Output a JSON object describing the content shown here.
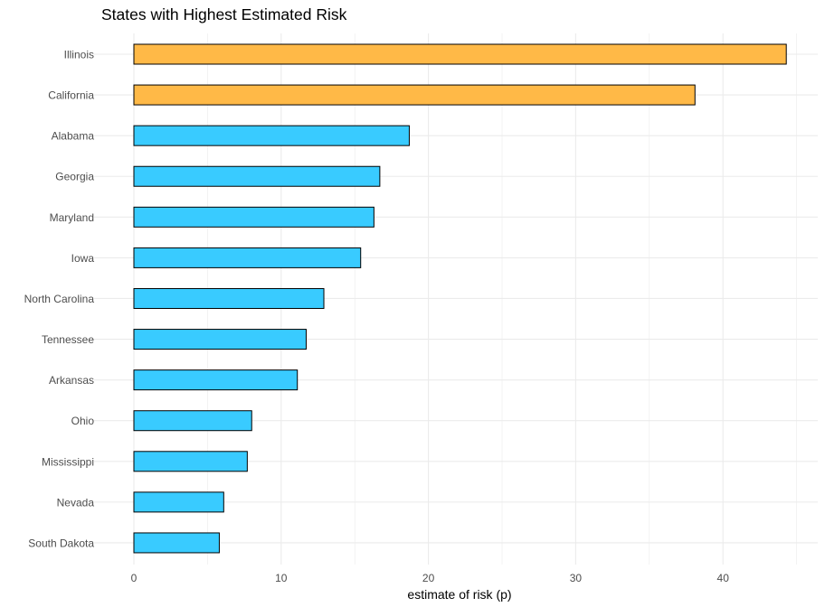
{
  "chart_data": {
    "type": "bar",
    "orientation": "horizontal",
    "title": "States with Highest Estimated Risk",
    "xlabel": "estimate of risk (p)",
    "ylabel": "",
    "xlim": [
      0,
      46
    ],
    "xticks": [
      0,
      10,
      20,
      30,
      40
    ],
    "grid": true,
    "categories": [
      "Illinois",
      "California",
      "Alabama",
      "Georgia",
      "Maryland",
      "Iowa",
      "North Carolina",
      "Tennessee",
      "Arkansas",
      "Ohio",
      "Mississippi",
      "Nevada",
      "South Dakota"
    ],
    "values": [
      44.3,
      38.1,
      18.7,
      16.7,
      16.3,
      15.4,
      12.9,
      11.7,
      11.1,
      8.0,
      7.7,
      6.1,
      5.8
    ],
    "highlighted": [
      "Illinois",
      "California"
    ],
    "colors": {
      "highlight": "#FFB947",
      "default": "#39CBFF",
      "outline": "#000000",
      "grid": "#EBEBEB",
      "tick_text": "#4D4D4D"
    }
  }
}
